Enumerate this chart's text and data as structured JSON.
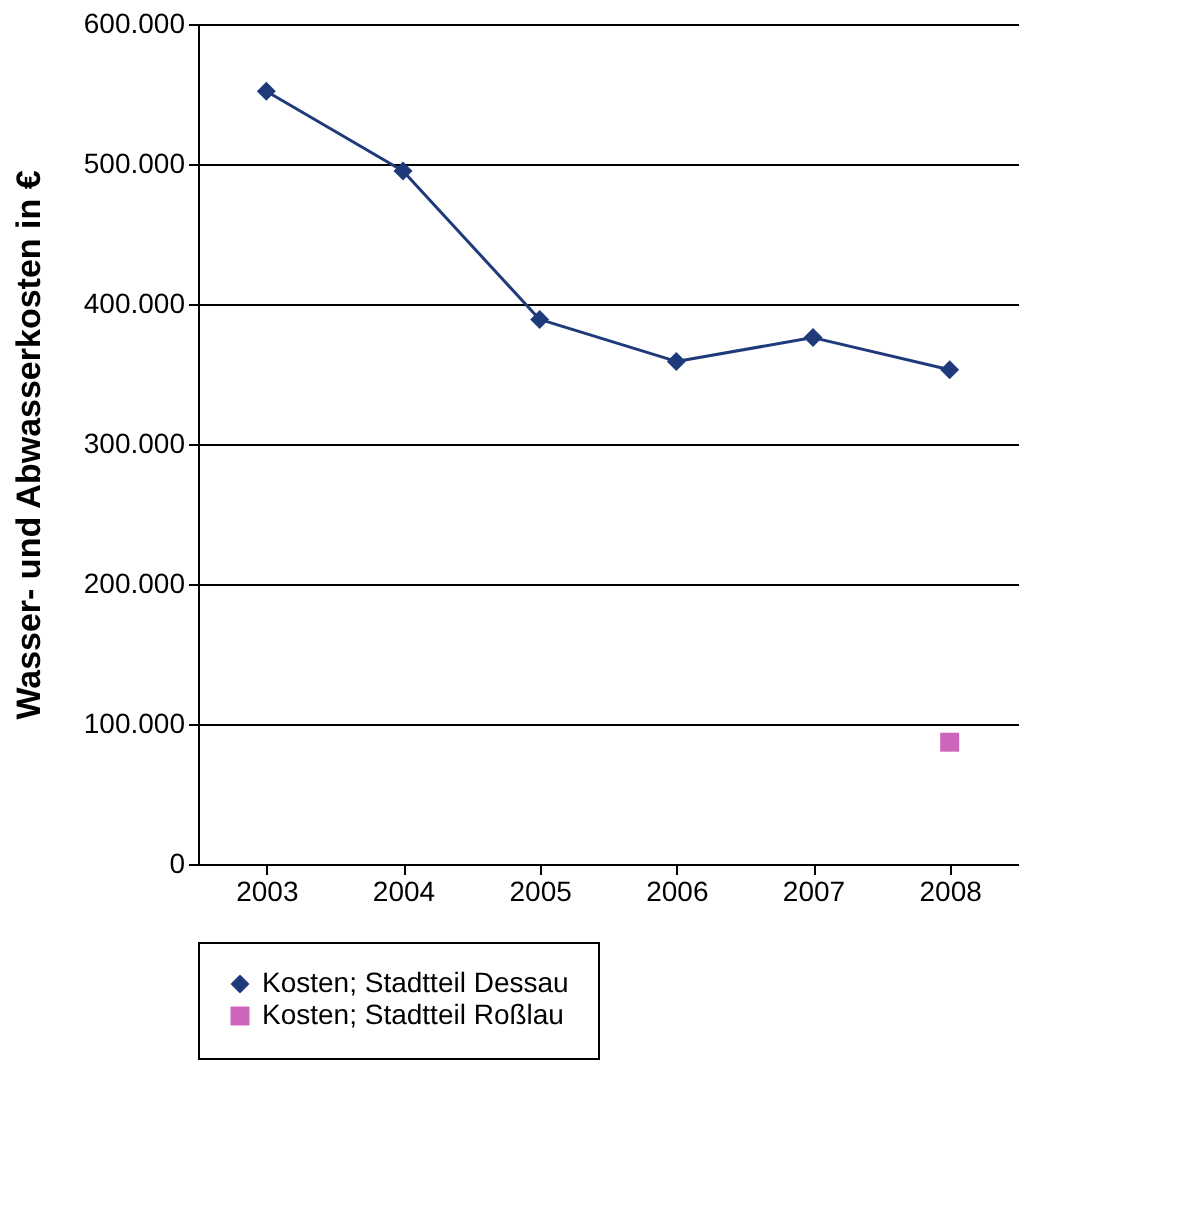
{
  "chart_data": {
    "type": "line",
    "ylabel": "Wasser- und Abwasserkosten in  €",
    "categories": [
      "2003",
      "2004",
      "2005",
      "2006",
      "2007",
      "2008"
    ],
    "series": [
      {
        "name": "Kosten; Stadtteil Dessau",
        "color": "#1f3a7a",
        "line_style": "solid",
        "marker": "diamond",
        "values": [
          552000,
          495000,
          389000,
          359000,
          376000,
          353000
        ]
      },
      {
        "name": "Kosten; Stadtteil Roßlau",
        "color": "#cc66bb",
        "type": "scatter",
        "marker": "square",
        "values": [
          null,
          null,
          null,
          null,
          null,
          87000
        ]
      }
    ],
    "ylim": [
      0,
      600000
    ],
    "yticks": [
      {
        "value": 0,
        "label": "0"
      },
      {
        "value": 100000,
        "label": "100.000"
      },
      {
        "value": 200000,
        "label": "200.000"
      },
      {
        "value": 300000,
        "label": "300.000"
      },
      {
        "value": 400000,
        "label": "400.000"
      },
      {
        "value": 500000,
        "label": "500.000"
      },
      {
        "value": 600000,
        "label": "600.000"
      }
    ],
    "grid": "y",
    "legend": "bottom"
  }
}
